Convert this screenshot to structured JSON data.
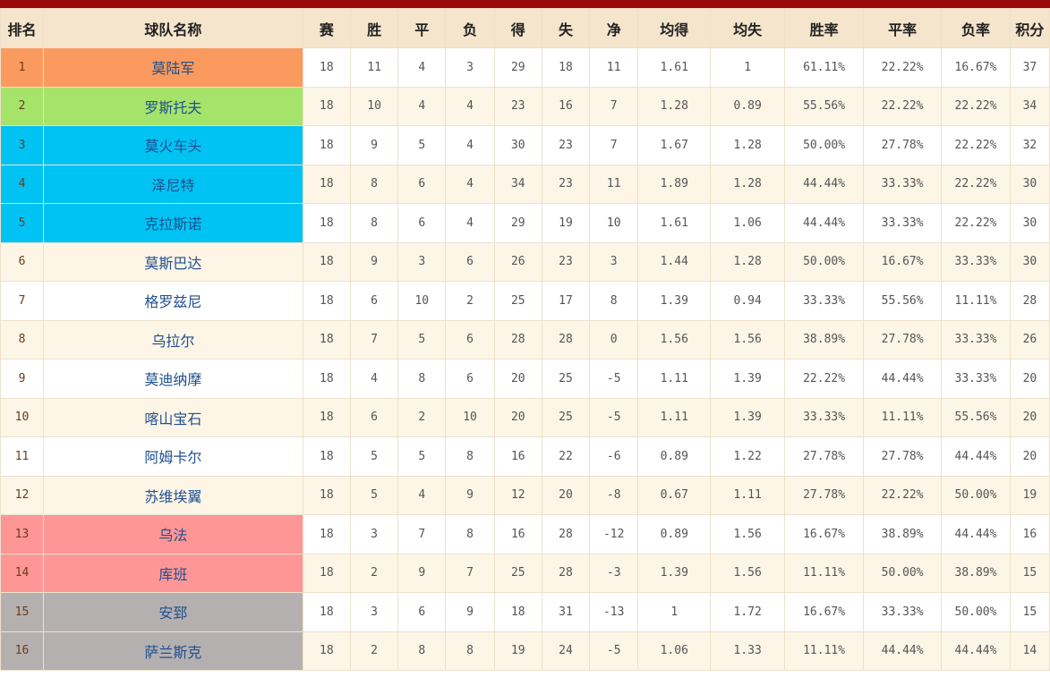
{
  "table": {
    "headers": [
      "排名",
      "球队名称",
      "赛",
      "胜",
      "平",
      "负",
      "得",
      "失",
      "净",
      "均得",
      "均失",
      "胜率",
      "平率",
      "负率",
      "积分"
    ],
    "rows": [
      {
        "rank": "1",
        "team": "莫陆军",
        "stats": [
          "18",
          "11",
          "4",
          "3",
          "29",
          "18",
          "11",
          "1.61",
          "1",
          "61.11%",
          "22.22%",
          "16.67%",
          "37"
        ],
        "highlight": "#fa9a5e"
      },
      {
        "rank": "2",
        "team": "罗斯托夫",
        "stats": [
          "18",
          "10",
          "4",
          "4",
          "23",
          "16",
          "7",
          "1.28",
          "0.89",
          "55.56%",
          "22.22%",
          "22.22%",
          "34"
        ],
        "highlight": "#a5e36b"
      },
      {
        "rank": "3",
        "team": "莫火车头",
        "stats": [
          "18",
          "9",
          "5",
          "4",
          "30",
          "23",
          "7",
          "1.67",
          "1.28",
          "50.00%",
          "27.78%",
          "22.22%",
          "32"
        ],
        "highlight": "#00c3f4"
      },
      {
        "rank": "4",
        "team": "泽尼特",
        "stats": [
          "18",
          "8",
          "6",
          "4",
          "34",
          "23",
          "11",
          "1.89",
          "1.28",
          "44.44%",
          "33.33%",
          "22.22%",
          "30"
        ],
        "highlight": "#00c3f4"
      },
      {
        "rank": "5",
        "team": "克拉斯诺",
        "stats": [
          "18",
          "8",
          "6",
          "4",
          "29",
          "19",
          "10",
          "1.61",
          "1.06",
          "44.44%",
          "33.33%",
          "22.22%",
          "30"
        ],
        "highlight": "#00c3f4"
      },
      {
        "rank": "6",
        "team": "莫斯巴达",
        "stats": [
          "18",
          "9",
          "3",
          "6",
          "26",
          "23",
          "3",
          "1.44",
          "1.28",
          "50.00%",
          "16.67%",
          "33.33%",
          "30"
        ],
        "highlight": ""
      },
      {
        "rank": "7",
        "team": "格罗兹尼",
        "stats": [
          "18",
          "6",
          "10",
          "2",
          "25",
          "17",
          "8",
          "1.39",
          "0.94",
          "33.33%",
          "55.56%",
          "11.11%",
          "28"
        ],
        "highlight": ""
      },
      {
        "rank": "8",
        "team": "乌拉尔",
        "stats": [
          "18",
          "7",
          "5",
          "6",
          "28",
          "28",
          "0",
          "1.56",
          "1.56",
          "38.89%",
          "27.78%",
          "33.33%",
          "26"
        ],
        "highlight": ""
      },
      {
        "rank": "9",
        "team": "莫迪纳摩",
        "stats": [
          "18",
          "4",
          "8",
          "6",
          "20",
          "25",
          "-5",
          "1.11",
          "1.39",
          "22.22%",
          "44.44%",
          "33.33%",
          "20"
        ],
        "highlight": ""
      },
      {
        "rank": "10",
        "team": "喀山宝石",
        "stats": [
          "18",
          "6",
          "2",
          "10",
          "20",
          "25",
          "-5",
          "1.11",
          "1.39",
          "33.33%",
          "11.11%",
          "55.56%",
          "20"
        ],
        "highlight": ""
      },
      {
        "rank": "11",
        "team": "阿姆卡尔",
        "stats": [
          "18",
          "5",
          "5",
          "8",
          "16",
          "22",
          "-6",
          "0.89",
          "1.22",
          "27.78%",
          "27.78%",
          "44.44%",
          "20"
        ],
        "highlight": ""
      },
      {
        "rank": "12",
        "team": "苏维埃翼",
        "stats": [
          "18",
          "5",
          "4",
          "9",
          "12",
          "20",
          "-8",
          "0.67",
          "1.11",
          "27.78%",
          "22.22%",
          "50.00%",
          "19"
        ],
        "highlight": ""
      },
      {
        "rank": "13",
        "team": "乌法",
        "stats": [
          "18",
          "3",
          "7",
          "8",
          "16",
          "28",
          "-12",
          "0.89",
          "1.56",
          "16.67%",
          "38.89%",
          "44.44%",
          "16"
        ],
        "highlight": "#ff9696"
      },
      {
        "rank": "14",
        "team": "库班",
        "stats": [
          "18",
          "2",
          "9",
          "7",
          "25",
          "28",
          "-3",
          "1.39",
          "1.56",
          "11.11%",
          "50.00%",
          "38.89%",
          "15"
        ],
        "highlight": "#ff9696"
      },
      {
        "rank": "15",
        "team": "安郅",
        "stats": [
          "18",
          "3",
          "6",
          "9",
          "18",
          "31",
          "-13",
          "1",
          "1.72",
          "16.67%",
          "33.33%",
          "50.00%",
          "15"
        ],
        "highlight": "#b5b0b0"
      },
      {
        "rank": "16",
        "team": "萨兰斯克",
        "stats": [
          "18",
          "2",
          "8",
          "8",
          "19",
          "24",
          "-5",
          "1.06",
          "1.33",
          "11.11%",
          "44.44%",
          "44.44%",
          "14"
        ],
        "highlight": "#b5b0b0"
      }
    ]
  }
}
